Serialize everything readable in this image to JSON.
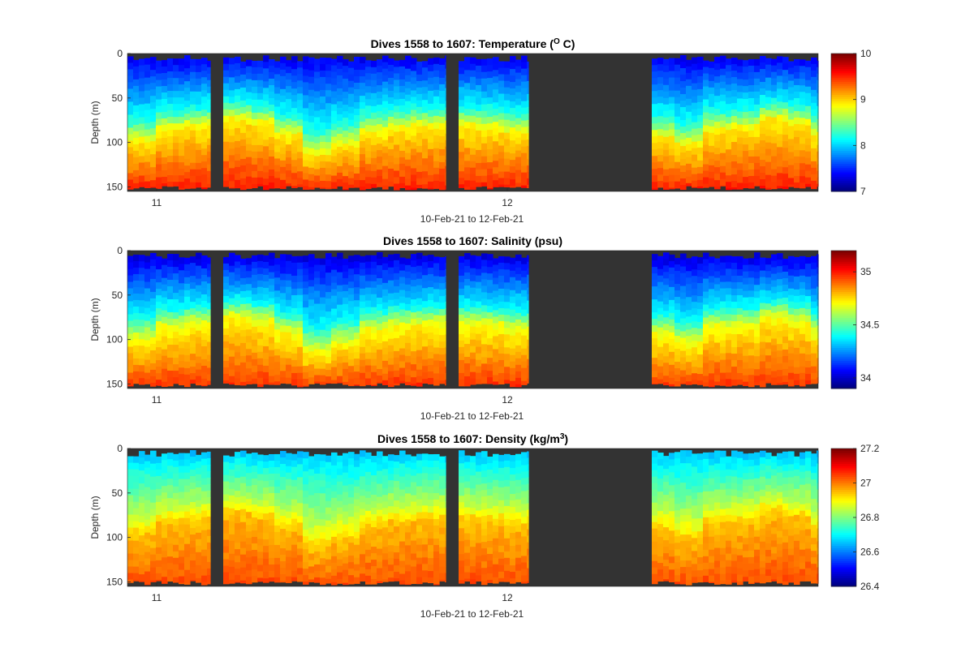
{
  "chart_data": [
    {
      "type": "heatmap",
      "title": "Dives 1558 to 1607: Temperature",
      "title_unit_base": "O",
      "title_unit_tail": " C)",
      "title_unit_sup": "",
      "ylabel": "Depth (m)",
      "xlabel": "10-Feb-21 to 12-Feb-21",
      "yticks": [
        "0",
        "50",
        "100",
        "150"
      ],
      "ylim": [
        155,
        0
      ],
      "xticks": [
        "11",
        "12"
      ],
      "colorbar": {
        "min": 7,
        "max": 10,
        "ticks": [
          "7",
          "8",
          "9",
          "10"
        ]
      },
      "profile": {
        "top": 7.3,
        "mid_depth": 60,
        "mid": 8.2,
        "bottom": 9.6
      },
      "thermocline_depth_m": [
        95,
        82,
        78,
        70,
        75,
        88,
        110,
        100,
        85,
        80,
        78,
        78,
        80,
        85,
        90,
        100,
        82,
        80,
        70,
        75,
        90,
        95,
        100,
        110,
        125
      ]
    },
    {
      "type": "heatmap",
      "title": "Dives 1558 to 1607: Salinity (psu)",
      "ylabel": "Depth (m)",
      "xlabel": "10-Feb-21 to 12-Feb-21",
      "yticks": [
        "0",
        "50",
        "100",
        "150"
      ],
      "ylim": [
        155,
        0
      ],
      "xticks": [
        "11",
        "12"
      ],
      "colorbar": {
        "min": 33.9,
        "max": 35.2,
        "ticks": [
          "34",
          "34.5",
          "35"
        ]
      },
      "profile": {
        "top": 34.0,
        "mid_depth": 60,
        "mid": 34.4,
        "bottom": 35.0
      }
    },
    {
      "type": "heatmap",
      "title": "Dives 1558 to 1607: Density (kg/m",
      "title_unit_sup": "3",
      "title_unit_tail": ")",
      "ylabel": "Depth (m)",
      "xlabel": "10-Feb-21 to 12-Feb-21",
      "yticks": [
        "0",
        "50",
        "100",
        "150"
      ],
      "ylim": [
        155,
        0
      ],
      "xticks": [
        "11",
        "12"
      ],
      "colorbar": {
        "min": 26.4,
        "max": 27.2,
        "ticks": [
          "26.4",
          "26.6",
          "26.8",
          "27",
          "27.2"
        ]
      },
      "profile": {
        "top": 26.65,
        "mid_depth": 60,
        "mid": 26.85,
        "bottom": 27.05
      }
    }
  ],
  "colors": {
    "no_data": "#333333",
    "text": "#262626"
  }
}
